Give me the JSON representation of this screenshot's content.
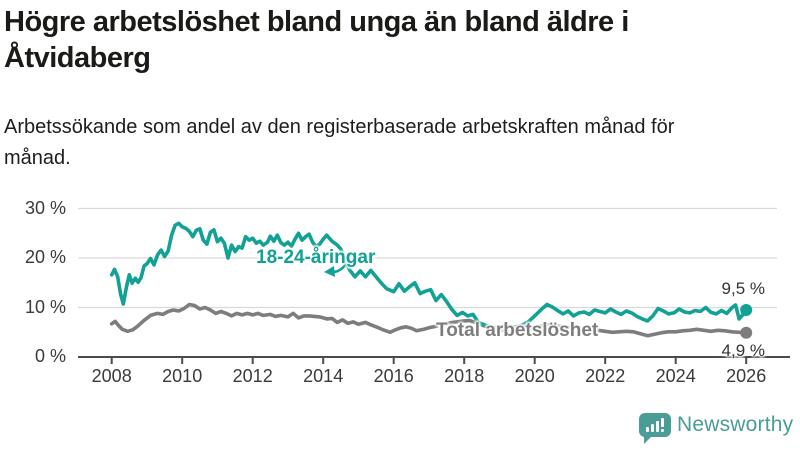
{
  "title": "Högre arbetslöshet bland unga än bland äldre i Åtvidaberg",
  "subtitle": "Arbetssökande som andel av den registerbaserade arbetskraften månad för månad.",
  "footer": {
    "brand": "Newsworthy"
  },
  "colors": {
    "youth": "#12A195",
    "total": "#7D7D7D",
    "grid": "#D9D9D9",
    "axis": "#4B4B4B",
    "tick_text": "#3A3A3A",
    "end_label_text": "#333333",
    "brand": "#4A9C97"
  },
  "chart_data": {
    "type": "line",
    "title": "Högre arbetslöshet bland unga än bland äldre i Åtvidaberg",
    "subtitle": "Arbetssökande som andel av den registerbaserade arbetskraften månad för månad.",
    "ylabel": "",
    "xlabel": "",
    "y_unit": "%",
    "grid": true,
    "ylim": [
      0,
      32
    ],
    "xlim": [
      2007.8,
      2027.2
    ],
    "y_ticks": [
      {
        "value": 30,
        "label": "30 %"
      },
      {
        "value": 20,
        "label": "20 %"
      },
      {
        "value": 10,
        "label": "10 %"
      },
      {
        "value": 0,
        "label": "0 %"
      }
    ],
    "x_ticks": [
      {
        "year": 2008,
        "label": "2008"
      },
      {
        "year": 2010,
        "label": "2010"
      },
      {
        "year": 2012,
        "label": "2012"
      },
      {
        "year": 2014,
        "label": "2014"
      },
      {
        "year": 2016,
        "label": "2016"
      },
      {
        "year": 2018,
        "label": "2018"
      },
      {
        "year": 2020,
        "label": "2020"
      },
      {
        "year": 2022,
        "label": "2022"
      },
      {
        "year": 2024,
        "label": "2024"
      },
      {
        "year": 2026,
        "label": "2026"
      }
    ],
    "series": [
      {
        "name": "18-24-åringar",
        "color": "#12A195",
        "end_label": "9,5 %",
        "end_value": 9.5,
        "points": [
          [
            2008.0,
            16.6
          ],
          [
            2008.08,
            17.7
          ],
          [
            2008.17,
            16.2
          ],
          [
            2008.25,
            12.8
          ],
          [
            2008.33,
            10.7
          ],
          [
            2008.42,
            14.2
          ],
          [
            2008.5,
            16.6
          ],
          [
            2008.58,
            14.9
          ],
          [
            2008.67,
            15.9
          ],
          [
            2008.75,
            15.1
          ],
          [
            2008.83,
            16.0
          ],
          [
            2008.92,
            18.4
          ],
          [
            2009.0,
            18.8
          ],
          [
            2009.1,
            19.9
          ],
          [
            2009.2,
            18.6
          ],
          [
            2009.3,
            20.6
          ],
          [
            2009.4,
            21.6
          ],
          [
            2009.5,
            20.3
          ],
          [
            2009.6,
            21.4
          ],
          [
            2009.7,
            24.6
          ],
          [
            2009.8,
            26.6
          ],
          [
            2009.9,
            27.0
          ],
          [
            2010.0,
            26.3
          ],
          [
            2010.1,
            26.0
          ],
          [
            2010.2,
            25.4
          ],
          [
            2010.3,
            24.3
          ],
          [
            2010.4,
            25.6
          ],
          [
            2010.5,
            25.9
          ],
          [
            2010.6,
            23.6
          ],
          [
            2010.7,
            22.8
          ],
          [
            2010.8,
            25.2
          ],
          [
            2010.9,
            25.7
          ],
          [
            2011.0,
            23.3
          ],
          [
            2011.1,
            24.0
          ],
          [
            2011.2,
            22.9
          ],
          [
            2011.3,
            20.0
          ],
          [
            2011.4,
            22.6
          ],
          [
            2011.5,
            21.3
          ],
          [
            2011.6,
            22.3
          ],
          [
            2011.7,
            22.0
          ],
          [
            2011.8,
            24.3
          ],
          [
            2011.9,
            23.6
          ],
          [
            2012.0,
            24.0
          ],
          [
            2012.1,
            23.0
          ],
          [
            2012.2,
            23.4
          ],
          [
            2012.3,
            22.6
          ],
          [
            2012.42,
            23.2
          ],
          [
            2012.5,
            24.4
          ],
          [
            2012.6,
            23.4
          ],
          [
            2012.7,
            24.6
          ],
          [
            2012.8,
            23.1
          ],
          [
            2012.9,
            22.6
          ],
          [
            2013.0,
            23.2
          ],
          [
            2013.1,
            22.4
          ],
          [
            2013.2,
            23.8
          ],
          [
            2013.3,
            25.0
          ],
          [
            2013.4,
            23.6
          ],
          [
            2013.5,
            24.3
          ],
          [
            2013.6,
            24.8
          ],
          [
            2013.7,
            23.2
          ],
          [
            2013.8,
            22.3
          ],
          [
            2013.9,
            22.8
          ],
          [
            2014.0,
            23.8
          ],
          [
            2014.1,
            24.6
          ],
          [
            2014.25,
            23.4
          ],
          [
            2014.4,
            22.6
          ],
          [
            2014.5,
            21.8
          ],
          [
            2014.6,
            19.8
          ],
          [
            2014.75,
            17.6
          ],
          [
            2014.9,
            16.2
          ],
          [
            2015.05,
            17.4
          ],
          [
            2015.2,
            16.2
          ],
          [
            2015.35,
            17.5
          ],
          [
            2015.5,
            16.2
          ],
          [
            2015.65,
            14.9
          ],
          [
            2015.8,
            13.8
          ],
          [
            2016.0,
            13.2
          ],
          [
            2016.15,
            14.8
          ],
          [
            2016.3,
            13.3
          ],
          [
            2016.45,
            14.2
          ],
          [
            2016.6,
            15.0
          ],
          [
            2016.75,
            12.8
          ],
          [
            2016.9,
            13.3
          ],
          [
            2017.05,
            13.6
          ],
          [
            2017.2,
            11.4
          ],
          [
            2017.35,
            12.6
          ],
          [
            2017.5,
            11.2
          ],
          [
            2017.65,
            9.6
          ],
          [
            2017.8,
            8.4
          ],
          [
            2017.95,
            9.0
          ],
          [
            2018.1,
            8.3
          ],
          [
            2018.25,
            8.6
          ],
          [
            2018.4,
            7.0
          ],
          [
            2018.6,
            6.4
          ],
          [
            2018.8,
            6.0
          ],
          [
            2019.0,
            5.9
          ],
          [
            2019.2,
            6.2
          ],
          [
            2019.4,
            6.0
          ],
          [
            2019.6,
            6.3
          ],
          [
            2019.8,
            7.0
          ],
          [
            2020.0,
            8.3
          ],
          [
            2020.2,
            9.7
          ],
          [
            2020.35,
            10.6
          ],
          [
            2020.5,
            10.1
          ],
          [
            2020.65,
            9.4
          ],
          [
            2020.8,
            8.7
          ],
          [
            2020.95,
            9.3
          ],
          [
            2021.1,
            8.3
          ],
          [
            2021.25,
            8.9
          ],
          [
            2021.4,
            9.1
          ],
          [
            2021.55,
            8.6
          ],
          [
            2021.7,
            9.5
          ],
          [
            2021.85,
            9.2
          ],
          [
            2022.0,
            8.9
          ],
          [
            2022.15,
            9.7
          ],
          [
            2022.3,
            9.1
          ],
          [
            2022.45,
            8.6
          ],
          [
            2022.6,
            9.3
          ],
          [
            2022.75,
            8.9
          ],
          [
            2022.9,
            8.2
          ],
          [
            2023.05,
            7.7
          ],
          [
            2023.2,
            7.3
          ],
          [
            2023.35,
            8.3
          ],
          [
            2023.5,
            9.8
          ],
          [
            2023.65,
            9.3
          ],
          [
            2023.8,
            8.7
          ],
          [
            2023.95,
            8.9
          ],
          [
            2024.1,
            9.7
          ],
          [
            2024.25,
            9.1
          ],
          [
            2024.4,
            8.9
          ],
          [
            2024.55,
            9.4
          ],
          [
            2024.7,
            9.2
          ],
          [
            2024.85,
            10.0
          ],
          [
            2025.0,
            9.0
          ],
          [
            2025.15,
            8.7
          ],
          [
            2025.3,
            9.4
          ],
          [
            2025.45,
            8.8
          ],
          [
            2025.6,
            10.0
          ],
          [
            2025.7,
            10.5
          ],
          [
            2025.8,
            7.7
          ],
          [
            2025.9,
            8.5
          ],
          [
            2026.0,
            9.5
          ]
        ]
      },
      {
        "name": "Total arbetslöshet",
        "color": "#7D7D7D",
        "end_label": "4,9 %",
        "end_value": 4.9,
        "points": [
          [
            2008.0,
            6.7
          ],
          [
            2008.1,
            7.2
          ],
          [
            2008.2,
            6.3
          ],
          [
            2008.3,
            5.6
          ],
          [
            2008.45,
            5.2
          ],
          [
            2008.6,
            5.5
          ],
          [
            2008.75,
            6.3
          ],
          [
            2008.9,
            7.3
          ],
          [
            2009.1,
            8.4
          ],
          [
            2009.3,
            8.8
          ],
          [
            2009.45,
            8.6
          ],
          [
            2009.6,
            9.2
          ],
          [
            2009.75,
            9.5
          ],
          [
            2009.9,
            9.3
          ],
          [
            2010.05,
            9.8
          ],
          [
            2010.2,
            10.6
          ],
          [
            2010.35,
            10.4
          ],
          [
            2010.5,
            9.7
          ],
          [
            2010.65,
            10.0
          ],
          [
            2010.8,
            9.5
          ],
          [
            2010.95,
            8.8
          ],
          [
            2011.1,
            9.2
          ],
          [
            2011.25,
            8.8
          ],
          [
            2011.4,
            8.3
          ],
          [
            2011.55,
            8.8
          ],
          [
            2011.7,
            8.5
          ],
          [
            2011.85,
            8.8
          ],
          [
            2012.0,
            8.5
          ],
          [
            2012.15,
            8.8
          ],
          [
            2012.3,
            8.4
          ],
          [
            2012.5,
            8.6
          ],
          [
            2012.65,
            8.2
          ],
          [
            2012.8,
            8.4
          ],
          [
            2013.0,
            8.1
          ],
          [
            2013.15,
            8.8
          ],
          [
            2013.3,
            7.9
          ],
          [
            2013.45,
            8.3
          ],
          [
            2013.6,
            8.3
          ],
          [
            2013.75,
            8.2
          ],
          [
            2013.9,
            8.1
          ],
          [
            2014.1,
            7.7
          ],
          [
            2014.25,
            7.8
          ],
          [
            2014.4,
            7.0
          ],
          [
            2014.55,
            7.5
          ],
          [
            2014.7,
            6.8
          ],
          [
            2014.85,
            7.1
          ],
          [
            2015.0,
            6.6
          ],
          [
            2015.2,
            7.0
          ],
          [
            2015.35,
            6.5
          ],
          [
            2015.5,
            6.1
          ],
          [
            2015.7,
            5.5
          ],
          [
            2015.9,
            5.0
          ],
          [
            2016.05,
            5.5
          ],
          [
            2016.2,
            5.9
          ],
          [
            2016.35,
            6.1
          ],
          [
            2016.5,
            5.8
          ],
          [
            2016.65,
            5.3
          ],
          [
            2016.85,
            5.6
          ],
          [
            2017.0,
            5.9
          ],
          [
            2017.2,
            6.2
          ],
          [
            2017.4,
            6.6
          ],
          [
            2017.6,
            6.9
          ],
          [
            2017.8,
            7.1
          ],
          [
            2018.0,
            7.3
          ],
          [
            2018.15,
            7.4
          ],
          [
            2018.3,
            7.0
          ],
          [
            2018.45,
            6.6
          ],
          [
            2018.6,
            6.2
          ],
          [
            2018.8,
            5.8
          ],
          [
            2019.0,
            5.5
          ],
          [
            2019.2,
            5.3
          ],
          [
            2019.4,
            5.2
          ],
          [
            2019.6,
            5.3
          ],
          [
            2019.8,
            5.5
          ],
          [
            2020.0,
            5.9
          ],
          [
            2020.2,
            6.3
          ],
          [
            2020.4,
            6.5
          ],
          [
            2020.6,
            6.3
          ],
          [
            2020.8,
            6.1
          ],
          [
            2021.0,
            6.0
          ],
          [
            2021.2,
            5.9
          ],
          [
            2021.4,
            5.7
          ],
          [
            2021.6,
            5.5
          ],
          [
            2021.8,
            5.4
          ],
          [
            2022.0,
            5.2
          ],
          [
            2022.2,
            5.0
          ],
          [
            2022.4,
            5.1
          ],
          [
            2022.6,
            5.2
          ],
          [
            2022.8,
            5.1
          ],
          [
            2023.0,
            4.7
          ],
          [
            2023.2,
            4.3
          ],
          [
            2023.4,
            4.6
          ],
          [
            2023.6,
            4.9
          ],
          [
            2023.8,
            5.1
          ],
          [
            2024.0,
            5.1
          ],
          [
            2024.2,
            5.3
          ],
          [
            2024.4,
            5.4
          ],
          [
            2024.6,
            5.6
          ],
          [
            2024.8,
            5.4
          ],
          [
            2025.0,
            5.2
          ],
          [
            2025.2,
            5.4
          ],
          [
            2025.4,
            5.3
          ],
          [
            2025.6,
            5.1
          ],
          [
            2025.8,
            5.0
          ],
          [
            2026.0,
            4.9
          ]
        ]
      }
    ],
    "legend_position": "inline-labels"
  }
}
